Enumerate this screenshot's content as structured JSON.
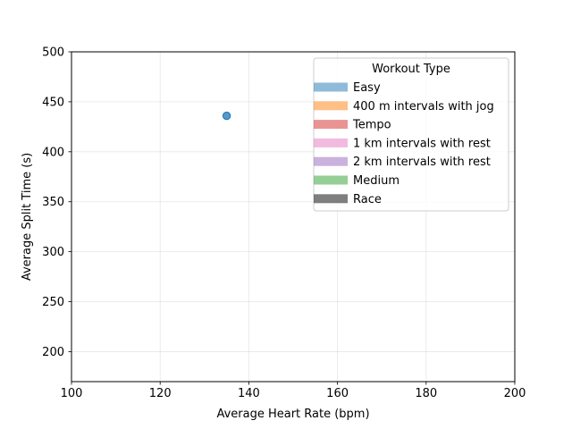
{
  "chart_data": {
    "type": "scatter",
    "title": "",
    "xlabel": "Average Heart Rate (bpm)",
    "ylabel": "Average Split Time (s)",
    "xlim": [
      100,
      200
    ],
    "ylim": [
      170,
      500
    ],
    "xticks": [
      100,
      120,
      140,
      160,
      180,
      200
    ],
    "yticks": [
      200,
      250,
      300,
      350,
      400,
      450,
      500
    ],
    "grid": true,
    "legend_title": "Workout Type",
    "legend_position": "top-right",
    "series": [
      {
        "name": "Easy",
        "color": "#1f77b4",
        "points": [
          {
            "x": 135,
            "y": 436
          }
        ]
      },
      {
        "name": "400 m intervals with jog",
        "color": "#ff7f0e",
        "points": []
      },
      {
        "name": "Tempo",
        "color": "#d62728",
        "points": []
      },
      {
        "name": "1 km intervals with rest",
        "color": "#e377c2",
        "points": []
      },
      {
        "name": "2 km intervals with rest",
        "color": "#9467bd",
        "points": []
      },
      {
        "name": "Medium",
        "color": "#2ca02c",
        "points": []
      },
      {
        "name": "Race",
        "color": "#000000",
        "points": []
      }
    ]
  }
}
